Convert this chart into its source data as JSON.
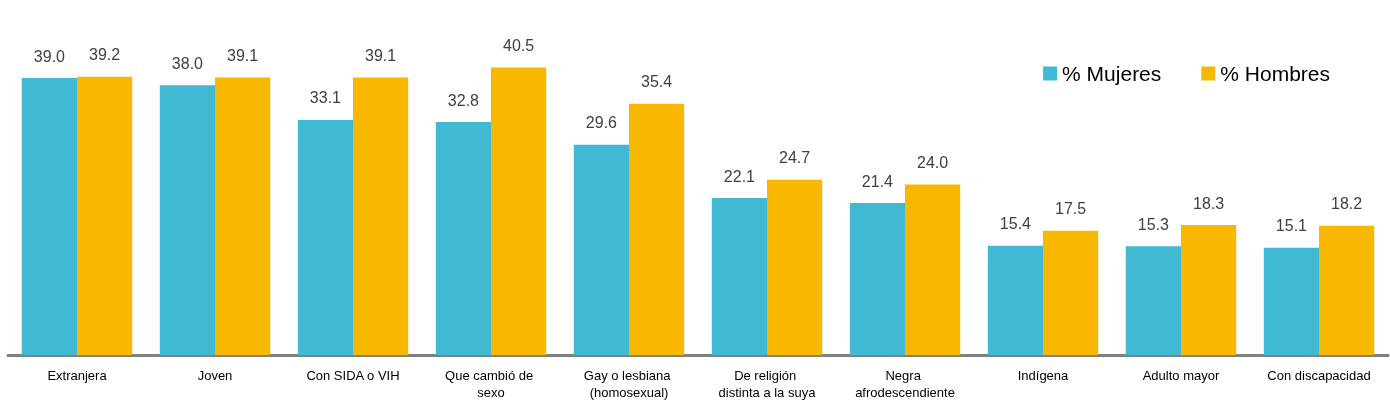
{
  "chart_data": {
    "type": "bar",
    "categories": [
      "Extranjera",
      "Joven",
      "Con SIDA o VIH",
      "Que cambió de sexo",
      "Gay o lesbiana (homosexual)",
      "De religión distinta a la suya",
      "Negra afrodescendiente",
      "Indígena",
      "Adulto mayor",
      "Con discapacidad"
    ],
    "series": [
      {
        "name": "% Mujeres",
        "color": "#41b9d3",
        "values": [
          39.0,
          38.0,
          33.1,
          32.8,
          29.6,
          22.1,
          21.4,
          15.4,
          15.3,
          15.1
        ],
        "value_labels": [
          "39.0",
          "38.0",
          "33.1",
          "32.8",
          "29.6",
          "22.1",
          "21.4",
          "15.4",
          "15.3",
          "15.1"
        ]
      },
      {
        "name": "% Hombres",
        "color": "#f9b800",
        "values": [
          39.2,
          39.1,
          39.1,
          40.5,
          35.4,
          24.7,
          24.0,
          17.5,
          18.3,
          18.2
        ],
        "value_labels": [
          "39.2",
          "39.1",
          "39.1",
          "40.5",
          "35.4",
          "24.7",
          "24.0",
          "17.5",
          "18.3",
          "18.2"
        ]
      }
    ],
    "legend": "top right"
  }
}
